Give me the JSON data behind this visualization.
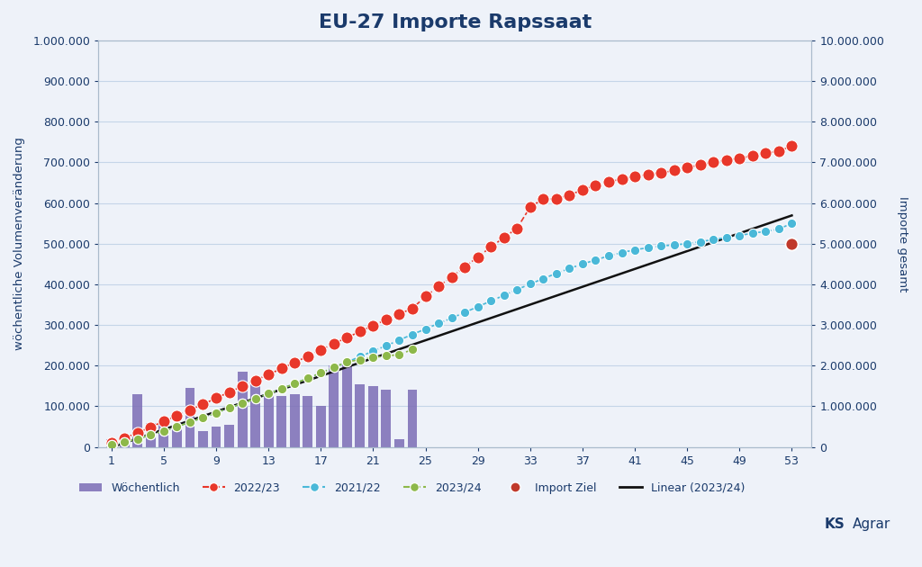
{
  "title": "EU-27 Importe Rapssaat",
  "ylabel_left": "wöchentliche Volumenveränderung",
  "ylabel_right": "Importe gesamt",
  "ylim_left": [
    0,
    1000000
  ],
  "ylim_right": [
    0,
    10000000
  ],
  "yticks_left": [
    0,
    100000,
    200000,
    300000,
    400000,
    500000,
    600000,
    700000,
    800000,
    900000,
    1000000
  ],
  "yticks_right": [
    0,
    1000000,
    2000000,
    3000000,
    4000000,
    5000000,
    6000000,
    7000000,
    8000000,
    9000000,
    10000000
  ],
  "xticks": [
    1,
    5,
    9,
    13,
    17,
    21,
    25,
    29,
    33,
    37,
    41,
    45,
    49,
    53
  ],
  "xlim": [
    0.0,
    54.5
  ],
  "background_color": "#eef2f9",
  "plot_bg_color": "#eef2f9",
  "title_color": "#1a3a6b",
  "axis_color": "#1a3a6b",
  "grid_color": "#c5d5e8",
  "bar_color": "#7b6cb5",
  "line_2223_color": "#e8372a",
  "line_2122_color": "#4ab8d8",
  "line_2324_color": "#8db84a",
  "import_ziel_color": "#c0392b",
  "linear_color": "#111111",
  "weeks_2223": [
    1,
    2,
    3,
    4,
    5,
    6,
    7,
    8,
    9,
    10,
    11,
    12,
    13,
    14,
    15,
    16,
    17,
    18,
    19,
    20,
    21,
    22,
    23,
    24,
    25,
    26,
    27,
    28,
    29,
    30,
    31,
    32,
    33,
    34,
    35,
    36,
    37,
    38,
    39,
    40,
    41,
    42,
    43,
    44,
    45,
    46,
    47,
    48,
    49,
    50,
    51,
    52,
    53
  ],
  "cumul_2223": [
    100000,
    220000,
    350000,
    490000,
    630000,
    770000,
    910000,
    1050000,
    1200000,
    1350000,
    1490000,
    1640000,
    1780000,
    1930000,
    2080000,
    2230000,
    2390000,
    2540000,
    2690000,
    2840000,
    2990000,
    3130000,
    3270000,
    3410000,
    3700000,
    3950000,
    4180000,
    4430000,
    4670000,
    4920000,
    5150000,
    5380000,
    5900000,
    6100000,
    6100000,
    6200000,
    6320000,
    6440000,
    6520000,
    6590000,
    6650000,
    6700000,
    6740000,
    6800000,
    6870000,
    6940000,
    7000000,
    7060000,
    7100000,
    7160000,
    7220000,
    7280000,
    7400000
  ],
  "cumul_2122": [
    50000,
    120000,
    200000,
    295000,
    395000,
    500000,
    610000,
    720000,
    840000,
    960000,
    1070000,
    1190000,
    1310000,
    1430000,
    1560000,
    1690000,
    1820000,
    1960000,
    2090000,
    2220000,
    2360000,
    2490000,
    2630000,
    2770000,
    2900000,
    3040000,
    3170000,
    3310000,
    3450000,
    3590000,
    3730000,
    3870000,
    4010000,
    4140000,
    4270000,
    4390000,
    4500000,
    4600000,
    4700000,
    4780000,
    4850000,
    4900000,
    4940000,
    4970000,
    5000000,
    5050000,
    5100000,
    5150000,
    5200000,
    5260000,
    5300000,
    5360000,
    5500000
  ],
  "weeks_2324": [
    1,
    2,
    3,
    4,
    5,
    6,
    7,
    8,
    9,
    10,
    11,
    12,
    13,
    14,
    15,
    16,
    17,
    18,
    19,
    20,
    21,
    22,
    23,
    24
  ],
  "cumul_2324": [
    50000,
    120000,
    200000,
    295000,
    395000,
    500000,
    610000,
    720000,
    840000,
    960000,
    1070000,
    1190000,
    1310000,
    1430000,
    1560000,
    1690000,
    1820000,
    1960000,
    2090000,
    2150000,
    2200000,
    2240000,
    2270000,
    2400000
  ],
  "import_ziel_week": 53,
  "import_ziel_value": 5000000,
  "weekly_bars_weeks": [
    1,
    2,
    3,
    4,
    5,
    6,
    7,
    8,
    9,
    10,
    11,
    12,
    13,
    14,
    15,
    16,
    17,
    18,
    19,
    20,
    21,
    22,
    23,
    24
  ],
  "weekly_bars_values": [
    20000,
    15000,
    130000,
    60000,
    55000,
    55000,
    145000,
    40000,
    50000,
    55000,
    185000,
    155000,
    135000,
    125000,
    130000,
    125000,
    100000,
    200000,
    205000,
    155000,
    150000,
    140000,
    20000,
    140000
  ]
}
